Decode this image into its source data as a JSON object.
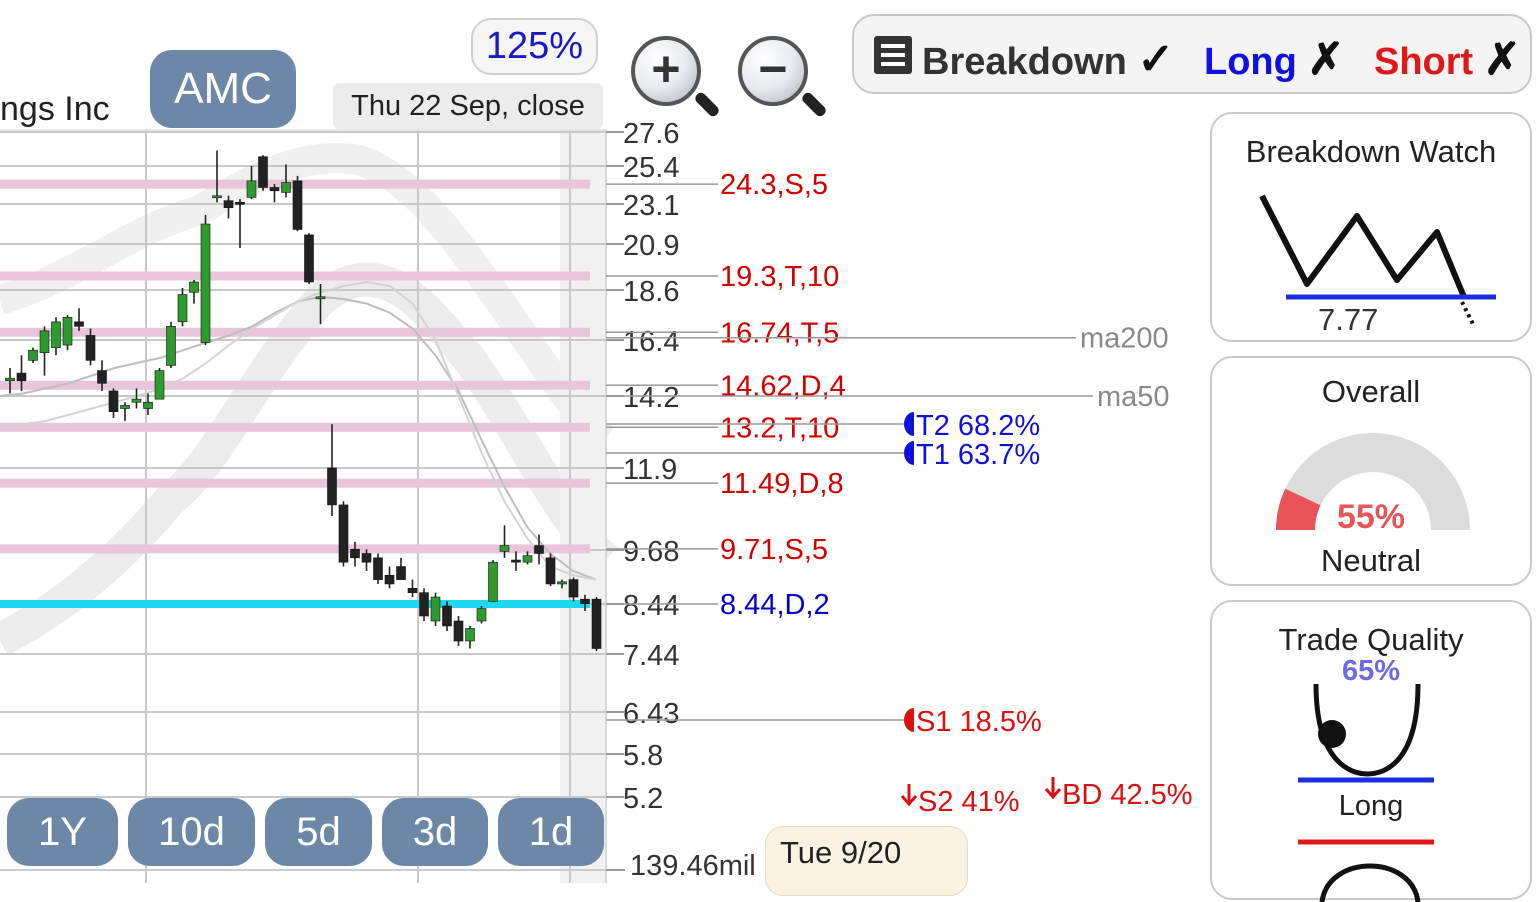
{
  "header": {
    "ticker": "AMC",
    "company_fragment": "ngs Inc",
    "date_label": "Thu 22 Sep, close",
    "zoom": "125%"
  },
  "mode_bar": {
    "breakdown_label": "Breakdown",
    "breakdown_mark": "✓",
    "long_label": "Long",
    "long_mark": "✗",
    "short_label": "Short",
    "short_mark": "✗"
  },
  "timeframes": [
    "1Y",
    "10d",
    "5d",
    "3d",
    "1d"
  ],
  "bottom": {
    "volume_label": "139.46mil",
    "date_tooltip": "Tue 9/20"
  },
  "panels": {
    "breakdown_watch": {
      "title": "Breakdown Watch",
      "level": "7.77"
    },
    "overall": {
      "title": "Overall",
      "percent": "55%",
      "value": 0.55,
      "status": "Neutral"
    },
    "trade_quality": {
      "title": "Trade Quality",
      "percent": "65%",
      "label": "Long"
    }
  },
  "colors": {
    "candle_up": "#2e9b2e",
    "candle_down": "#222222",
    "resistance_band": "#e8c5da",
    "support_line": "#1ed7f0",
    "level_label": "#d40000",
    "support_label": "#0000cc",
    "target": "#1010dd",
    "stop": "#dd1010",
    "pill": "#6d87a6",
    "gauge_fill": "#e8545a"
  },
  "chart_data": {
    "type": "candlestick",
    "yticks": [
      "27.6",
      "25.4",
      "23.1",
      "20.9",
      "18.6",
      "16.4",
      "14.2",
      "11.9",
      "9.68",
      "8.44",
      "7.44",
      "6.43",
      "5.8",
      "5.2"
    ],
    "levels": [
      {
        "price": 24.3,
        "label": "24.3,S,5"
      },
      {
        "price": 19.3,
        "label": "19.3,T,10"
      },
      {
        "price": 16.74,
        "label": "16.74,T,5"
      },
      {
        "price": 14.62,
        "label": "14.62,D,4"
      },
      {
        "price": 13.2,
        "label": "13.2,T,10"
      },
      {
        "price": 11.49,
        "label": "11.49,D,8"
      },
      {
        "price": 9.71,
        "label": "9.71,S,5"
      },
      {
        "price": 8.44,
        "label": "8.44,D,2",
        "support": true
      }
    ],
    "moving_averages": [
      {
        "name": "ma200",
        "value": 16.5
      },
      {
        "name": "ma50",
        "value": 14.2
      }
    ],
    "targets": [
      {
        "label": "T2 68.2%",
        "price": 13.2
      },
      {
        "label": "T1 63.7%",
        "price": 12.55
      },
      {
        "label": "S1 18.5%",
        "price": 6.34
      },
      {
        "label": "S2 41%",
        "price": 5.2
      },
      {
        "label": "BD 42.5%",
        "price": 5.3
      }
    ],
    "candles": [
      {
        "o": 14.8,
        "h": 15.3,
        "l": 14.3,
        "c": 14.9
      },
      {
        "o": 15.1,
        "h": 15.8,
        "l": 14.4,
        "c": 14.8
      },
      {
        "o": 15.6,
        "h": 16.1,
        "l": 15.5,
        "c": 16.0
      },
      {
        "o": 15.9,
        "h": 17.0,
        "l": 15.0,
        "c": 16.8
      },
      {
        "o": 16.1,
        "h": 17.4,
        "l": 15.8,
        "c": 17.2
      },
      {
        "o": 16.2,
        "h": 17.5,
        "l": 16.0,
        "c": 17.4
      },
      {
        "o": 17.2,
        "h": 17.8,
        "l": 16.8,
        "c": 17.0
      },
      {
        "o": 16.6,
        "h": 16.9,
        "l": 15.4,
        "c": 15.6
      },
      {
        "o": 15.2,
        "h": 15.6,
        "l": 14.4,
        "c": 14.7
      },
      {
        "o": 14.4,
        "h": 14.5,
        "l": 13.5,
        "c": 13.7
      },
      {
        "o": 13.8,
        "h": 14.0,
        "l": 13.4,
        "c": 13.9
      },
      {
        "o": 14.0,
        "h": 14.5,
        "l": 13.8,
        "c": 14.1
      },
      {
        "o": 13.8,
        "h": 14.3,
        "l": 13.6,
        "c": 14.0
      },
      {
        "o": 14.1,
        "h": 15.3,
        "l": 14.1,
        "c": 15.2
      },
      {
        "o": 15.4,
        "h": 17.2,
        "l": 15.3,
        "c": 17.0
      },
      {
        "o": 17.2,
        "h": 18.7,
        "l": 17.0,
        "c": 18.4
      },
      {
        "o": 18.5,
        "h": 19.1,
        "l": 18.0,
        "c": 19.0
      },
      {
        "o": 16.3,
        "h": 22.5,
        "l": 16.2,
        "c": 22.0
      },
      {
        "o": 23.5,
        "h": 26.4,
        "l": 23.2,
        "c": 23.6
      },
      {
        "o": 23.3,
        "h": 23.6,
        "l": 22.3,
        "c": 22.9
      },
      {
        "o": 23.2,
        "h": 23.4,
        "l": 20.7,
        "c": 23.1
      },
      {
        "o": 23.5,
        "h": 25.4,
        "l": 23.4,
        "c": 24.5
      },
      {
        "o": 26.0,
        "h": 26.1,
        "l": 23.9,
        "c": 24.1
      },
      {
        "o": 24.1,
        "h": 24.3,
        "l": 23.2,
        "c": 23.9
      },
      {
        "o": 23.8,
        "h": 25.5,
        "l": 23.5,
        "c": 24.4
      },
      {
        "o": 24.5,
        "h": 24.8,
        "l": 21.6,
        "c": 21.7
      },
      {
        "o": 21.4,
        "h": 21.5,
        "l": 18.9,
        "c": 19.0
      },
      {
        "o": 18.3,
        "h": 18.9,
        "l": 17.1,
        "c": 18.3
      },
      {
        "o": 11.9,
        "h": 13.3,
        "l": 10.6,
        "c": 10.9
      },
      {
        "o": 10.9,
        "h": 11.0,
        "l": 9.3,
        "c": 9.4
      },
      {
        "o": 9.7,
        "h": 9.9,
        "l": 9.3,
        "c": 9.5
      },
      {
        "o": 9.6,
        "h": 9.7,
        "l": 9.2,
        "c": 9.4
      },
      {
        "o": 9.5,
        "h": 9.6,
        "l": 8.9,
        "c": 9.0
      },
      {
        "o": 9.1,
        "h": 9.3,
        "l": 8.8,
        "c": 8.9
      },
      {
        "o": 9.3,
        "h": 9.5,
        "l": 9.0,
        "c": 9.0
      },
      {
        "o": 8.8,
        "h": 9.0,
        "l": 8.6,
        "c": 8.7
      },
      {
        "o": 8.7,
        "h": 8.8,
        "l": 8.1,
        "c": 8.2
      },
      {
        "o": 8.1,
        "h": 8.7,
        "l": 8.0,
        "c": 8.6
      },
      {
        "o": 8.4,
        "h": 8.5,
        "l": 7.9,
        "c": 8.0
      },
      {
        "o": 8.1,
        "h": 8.2,
        "l": 7.6,
        "c": 7.7
      },
      {
        "o": 7.7,
        "h": 8.0,
        "l": 7.55,
        "c": 7.95
      },
      {
        "o": 8.1,
        "h": 8.4,
        "l": 8.05,
        "c": 8.35
      },
      {
        "o": 8.5,
        "h": 9.45,
        "l": 8.5,
        "c": 9.4
      },
      {
        "o": 9.65,
        "h": 10.35,
        "l": 9.5,
        "c": 9.8
      },
      {
        "o": 9.45,
        "h": 9.65,
        "l": 9.2,
        "c": 9.4
      },
      {
        "o": 9.4,
        "h": 9.65,
        "l": 9.35,
        "c": 9.55
      },
      {
        "o": 9.8,
        "h": 10.1,
        "l": 9.35,
        "c": 9.6
      },
      {
        "o": 9.5,
        "h": 9.6,
        "l": 8.85,
        "c": 8.9
      },
      {
        "o": 8.9,
        "h": 9.0,
        "l": 8.8,
        "c": 8.95
      },
      {
        "o": 9.0,
        "h": 9.05,
        "l": 8.5,
        "c": 8.6
      },
      {
        "o": 8.55,
        "h": 8.65,
        "l": 8.3,
        "c": 8.45
      },
      {
        "o": 8.55,
        "h": 8.6,
        "l": 7.5,
        "c": 7.55
      }
    ],
    "ma50_path": [
      14.2,
      14.3,
      14.5,
      14.7,
      15.0,
      15.3,
      15.5,
      15.7,
      16.0,
      16.3,
      16.6,
      17.0,
      17.6,
      18.1,
      18.3,
      18.2,
      18.0,
      17.6,
      16.9,
      15.8,
      14.4,
      12.8,
      11.4,
      10.3,
      9.6,
      9.2,
      9.0
    ],
    "ma200_path": [
      13.2,
      13.3,
      13.4,
      13.6,
      13.8,
      14.0,
      14.2,
      14.5,
      14.9,
      15.5,
      16.2,
      16.9,
      17.5,
      18.1,
      18.5,
      18.8,
      19.0,
      18.8,
      18.0,
      16.4,
      14.2,
      12.4,
      11.0,
      10.0,
      9.3,
      9.1,
      9.0
    ]
  }
}
